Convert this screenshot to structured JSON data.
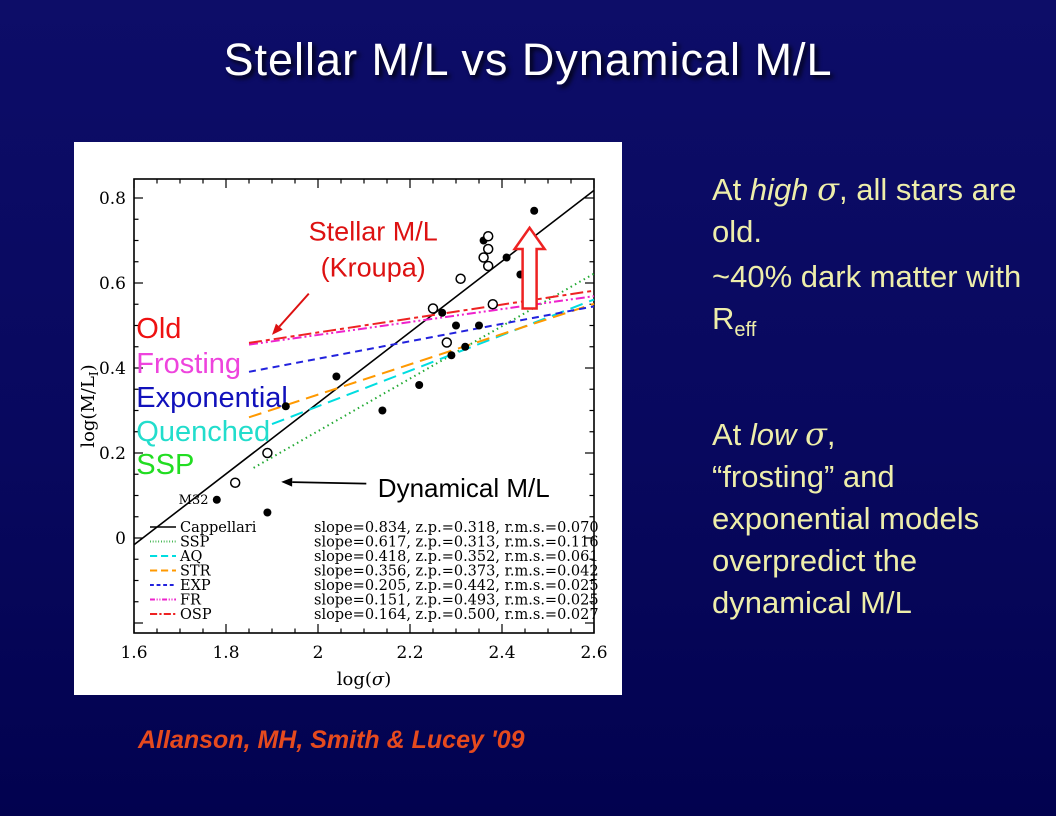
{
  "slide": {
    "title": "Stellar M/L vs Dynamical M/L",
    "citation": "Allanson, MH, Smith & Lucey '09",
    "colors": {
      "background": "#07075f",
      "title_text": "#ffffff",
      "body_text": "#eeeeaa",
      "citation_text": "#e64a1e"
    },
    "right_text": {
      "paragraphs": [
        {
          "segments": [
            {
              "t": "At "
            },
            {
              "t": "high",
              "style": "italic"
            },
            {
              "t": " "
            },
            {
              "t": "σ",
              "style": "sigma"
            },
            {
              "t": ", all stars are old."
            }
          ]
        },
        {
          "segments": [
            {
              "t": "~40% dark matter with R"
            },
            {
              "t": "eff",
              "style": "sub"
            }
          ]
        },
        {
          "segments": [
            {
              "t": "At "
            },
            {
              "t": "low",
              "style": "italic"
            },
            {
              "t": " "
            },
            {
              "t": "σ",
              "style": "sigma"
            },
            {
              "t": ","
            }
          ]
        },
        {
          "segments": [
            {
              "t": "“frosting” and exponential models overpredict the dynamical  M/L"
            }
          ]
        }
      ]
    }
  },
  "chart_data": {
    "type": "scatter",
    "xlabel_parts": {
      "pre": "log(",
      "sym": "σ",
      "post": ")"
    },
    "ylabel_parts": {
      "pre": "log(M/L",
      "sub": "I",
      "post": ")"
    },
    "xlim": [
      1.6,
      2.6
    ],
    "ylim": [
      -0.22,
      0.845
    ],
    "xticks": [
      "1.6",
      "1.8",
      "2",
      "2.2",
      "2.4",
      "2.6"
    ],
    "yticks": [
      "0",
      "0.2",
      "0.4",
      "0.6",
      "0.8"
    ],
    "minor_tick_step": 0.05,
    "grid": false,
    "points_filled": [
      [
        2.47,
        0.77
      ],
      [
        2.36,
        0.7
      ],
      [
        2.41,
        0.66
      ],
      [
        2.44,
        0.62
      ],
      [
        2.27,
        0.53
      ],
      [
        2.3,
        0.5
      ],
      [
        2.35,
        0.5
      ],
      [
        2.32,
        0.45
      ],
      [
        2.29,
        0.43
      ],
      [
        2.04,
        0.38
      ],
      [
        2.22,
        0.36
      ],
      [
        2.14,
        0.3
      ],
      [
        1.93,
        0.31
      ],
      [
        1.78,
        0.09
      ],
      [
        1.89,
        0.06
      ]
    ],
    "points_open": [
      [
        2.37,
        0.71
      ],
      [
        2.37,
        0.68
      ],
      [
        2.36,
        0.66
      ],
      [
        2.37,
        0.64
      ],
      [
        2.31,
        0.61
      ],
      [
        2.25,
        0.54
      ],
      [
        2.38,
        0.55
      ],
      [
        2.28,
        0.46
      ],
      [
        1.89,
        0.2
      ],
      [
        1.82,
        0.13
      ]
    ],
    "lines": [
      {
        "name": "Cappellari",
        "color": "#000000",
        "dash": "",
        "width": 1.6,
        "x1": 1.6,
        "y1": -0.016,
        "x2": 2.6,
        "y2": 0.818,
        "slope": 0.834,
        "zp": 0.318,
        "rms": 0.07
      },
      {
        "name": "SSP",
        "color": "#22aa33",
        "dash": "1.5 3.5",
        "width": 2,
        "x1": 1.86,
        "y1": 0.165,
        "x2": 2.6,
        "y2": 0.622,
        "slope": 0.617,
        "zp": 0.313,
        "rms": 0.116
      },
      {
        "name": "AQ",
        "color": "#00dde0",
        "dash": "13 7",
        "width": 2,
        "x1": 1.9,
        "y1": 0.268,
        "x2": 2.6,
        "y2": 0.561,
        "slope": 0.418,
        "zp": 0.352,
        "rms": 0.061
      },
      {
        "name": "STR",
        "color": "#ff9900",
        "dash": "13 7",
        "width": 2,
        "x1": 1.85,
        "y1": 0.284,
        "x2": 2.6,
        "y2": 0.551,
        "slope": 0.356,
        "zp": 0.373,
        "rms": 0.042
      },
      {
        "name": "EXP",
        "color": "#2222dd",
        "dash": "7 5",
        "width": 2,
        "x1": 1.85,
        "y1": 0.391,
        "x2": 2.6,
        "y2": 0.545,
        "slope": 0.205,
        "zp": 0.442,
        "rms": 0.025
      },
      {
        "name": "FR",
        "color": "#ee22cc",
        "dash": "9 3 2 3 2 3",
        "width": 2,
        "x1": 1.85,
        "y1": 0.455,
        "x2": 2.6,
        "y2": 0.569,
        "slope": 0.151,
        "zp": 0.493,
        "rms": 0.025
      },
      {
        "name": "OSP",
        "color": "#ee2222",
        "dash": "13 4 4 4",
        "width": 2,
        "x1": 1.85,
        "y1": 0.459,
        "x2": 2.6,
        "y2": 0.582,
        "slope": 0.164,
        "zp": 0.5,
        "rms": 0.027
      }
    ],
    "legend_rows": [
      {
        "name": "Cappellari",
        "params": "slope=0.834, z.p.=0.318, r.m.s.=0.070"
      },
      {
        "name": "SSP",
        "params": "slope=0.617, z.p.=0.313, r.m.s.=0.116"
      },
      {
        "name": "AQ",
        "params": "slope=0.418, z.p.=0.352, r.m.s.=0.061"
      },
      {
        "name": "STR",
        "params": "slope=0.356, z.p.=0.373, r.m.s.=0.042"
      },
      {
        "name": "EXP",
        "params": "slope=0.205, z.p.=0.442, r.m.s.=0.025"
      },
      {
        "name": "FR",
        "params": "slope=0.151, z.p.=0.493, r.m.s.=0.025"
      },
      {
        "name": "OSP",
        "params": "slope=0.164, z.p.=0.500, r.m.s.=0.027"
      }
    ],
    "annotations": {
      "stellar_label": {
        "line1": "Stellar M/L",
        "line2": "(Kroupa)",
        "x": 2.12,
        "y1": 0.7,
        "y2": 0.615,
        "color": "#dd1111"
      },
      "stellar_arrow": {
        "x1": 1.98,
        "y1": 0.575,
        "x2": 1.9,
        "y2": 0.478,
        "color": "#dd1111"
      },
      "dynamical_label": {
        "text": "Dynamical M/L",
        "x": 2.13,
        "y": 0.118,
        "color": "#000000"
      },
      "dynamical_arrow": {
        "x1": 2.105,
        "y1": 0.128,
        "x2": 1.92,
        "y2": 0.132,
        "color": "#000000"
      },
      "m32_label": {
        "text": "M32",
        "x": 1.775,
        "y": 0.089
      },
      "offset_arrow": {
        "x": 2.46,
        "y_tip": 0.73,
        "y_headbase": 0.68,
        "y_bottom": 0.54,
        "color": "#ee2222"
      },
      "model_labels": [
        {
          "text": "Old",
          "color": "#ee1111",
          "x": 1.605,
          "y": 0.494
        },
        {
          "text": "Frosting",
          "color": "#ee44dd",
          "x": 1.605,
          "y": 0.412
        },
        {
          "text": "Exponential",
          "color": "#1111bb",
          "x": 1.605,
          "y": 0.332
        },
        {
          "text": "Quenched",
          "color": "#22ddcc",
          "x": 1.605,
          "y": 0.252
        },
        {
          "text": "SSP",
          "color": "#22dd22",
          "x": 1.605,
          "y": 0.174
        }
      ]
    }
  }
}
